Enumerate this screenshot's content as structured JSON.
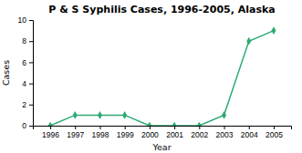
{
  "chart_data": {
    "type": "line",
    "title": "P & S Syphilis Cases, 1996-2005, Alaska",
    "xlabel": "Year",
    "ylabel": "Cases",
    "x": [
      1996,
      1997,
      1998,
      1999,
      2000,
      2001,
      2002,
      2003,
      2004,
      2005
    ],
    "values": [
      0,
      1,
      1,
      1,
      0,
      0,
      0,
      1,
      8,
      9
    ],
    "color": "#2eaa72",
    "marker": "diamond",
    "xlim": [
      1995.3,
      2005.7
    ],
    "xticks": [
      1996,
      1997,
      1998,
      1999,
      2000,
      2001,
      2002,
      2003,
      2004,
      2005
    ],
    "ylim": [
      0,
      10
    ],
    "yticks": [
      0,
      2,
      4,
      6,
      8,
      10
    ],
    "grid": false
  }
}
